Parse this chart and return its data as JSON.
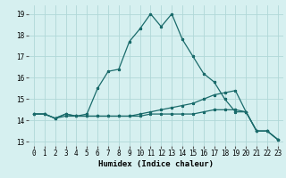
{
  "xlabel": "Humidex (Indice chaleur)",
  "ylabel": "",
  "bg_color": "#d6f0f0",
  "grid_color": "#b0d8d8",
  "line_color": "#1a6b6b",
  "xlim": [
    -0.5,
    23.5
  ],
  "ylim": [
    12.8,
    19.4
  ],
  "yticks": [
    13,
    14,
    15,
    16,
    17,
    18,
    19
  ],
  "xticks": [
    0,
    1,
    2,
    3,
    4,
    5,
    6,
    7,
    8,
    9,
    10,
    11,
    12,
    13,
    14,
    15,
    16,
    17,
    18,
    19,
    20,
    21,
    22,
    23
  ],
  "curve1_y": [
    14.3,
    14.3,
    14.1,
    14.3,
    14.2,
    14.2,
    14.2,
    14.2,
    14.2,
    14.2,
    14.3,
    14.4,
    14.5,
    14.6,
    14.7,
    14.8,
    15.0,
    15.2,
    15.3,
    15.4,
    14.4,
    13.5,
    13.5,
    13.1
  ],
  "curve2_y": [
    14.3,
    14.3,
    14.1,
    14.3,
    14.2,
    14.3,
    15.5,
    16.3,
    16.4,
    17.7,
    18.3,
    19.0,
    18.4,
    19.0,
    17.8,
    17.0,
    16.2,
    15.8,
    15.0,
    14.4,
    14.4,
    13.5,
    13.5,
    13.1
  ],
  "curve3_y": [
    14.3,
    14.3,
    14.1,
    14.2,
    14.2,
    14.2,
    14.2,
    14.2,
    14.2,
    14.2,
    14.2,
    14.3,
    14.3,
    14.3,
    14.3,
    14.3,
    14.4,
    14.5,
    14.5,
    14.5,
    14.4,
    13.5,
    13.5,
    13.1
  ],
  "tick_fontsize": 5.5,
  "label_fontsize": 6.5
}
